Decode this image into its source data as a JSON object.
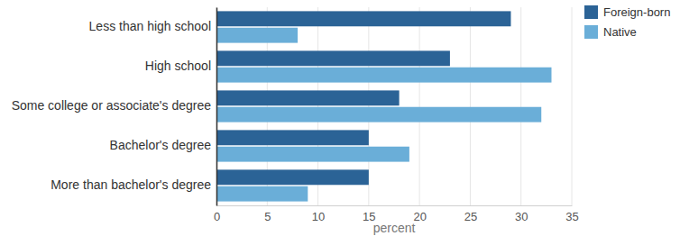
{
  "chart_data": {
    "type": "bar",
    "orientation": "horizontal",
    "categories": [
      "Less than high school",
      "High school",
      "Some college or associate's degree",
      "Bachelor's degree",
      "More than bachelor's degree"
    ],
    "series": [
      {
        "name": "Foreign-born",
        "color": "#2b6396",
        "values": [
          29,
          23,
          18,
          15,
          15
        ]
      },
      {
        "name": "Native",
        "color": "#6aaed8",
        "values": [
          8,
          33,
          32,
          19,
          9
        ]
      }
    ],
    "xlim": [
      0,
      35
    ],
    "xticks": [
      0,
      5,
      10,
      15,
      20,
      25,
      30,
      35
    ],
    "xlabel": "percent",
    "grid": true,
    "legend": "top-right"
  }
}
